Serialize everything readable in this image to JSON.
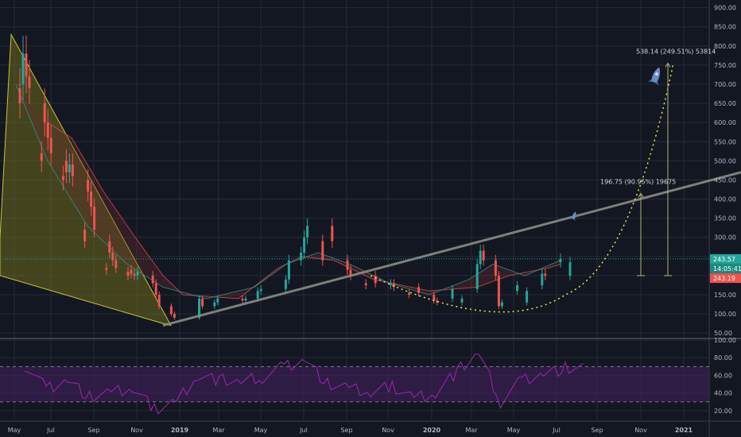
{
  "colors": {
    "background": "#131722",
    "grid": "#262b3a",
    "axis_text": "#b2b5be",
    "separator": "#3a3f4d",
    "candle_up": "#26a69a",
    "candle_down": "#ef5350",
    "cloud_green": "#1e5e3a",
    "cloud_red": "#6b2a2f",
    "wedge_fill": "#6b6a1c",
    "wedge_line": "#c9c23a",
    "trendline": "#8a8c84",
    "curve": "#e8e84a",
    "projection": "#b3b07a",
    "rsi_line": "#9c27b0",
    "rsi_band": "#3b2052",
    "last_price": "#26a69a",
    "countdown": "#1e8a80",
    "prev_price": "#ef5350",
    "price_line": "#26a69a"
  },
  "chart_data": [
    {
      "type": "candlestick",
      "x_ticks": [
        "May",
        "Jul",
        "Sep",
        "Nov",
        "2019",
        "Mar",
        "May",
        "Jul",
        "Sep",
        "Nov",
        "2020",
        "Mar",
        "May",
        "Jul",
        "Sep",
        "Nov",
        "2021"
      ],
      "y_ticks": [
        "900.00",
        "850.00",
        "800.00",
        "750.00",
        "700.00",
        "650.00",
        "600.00",
        "550.00",
        "500.00",
        "450.00",
        "400.00",
        "350.00",
        "300.00",
        "250.00",
        "200.00",
        "150.00",
        "100.00",
        "50.00"
      ],
      "ylim": [
        40,
        920
      ],
      "grid": true,
      "price_labels": {
        "last": "243.57",
        "countdown": "14:05:41",
        "prev": "243.19"
      },
      "annotations": [
        {
          "text": "538.14 (249.51%) 53814",
          "from": 200,
          "to": 755
        },
        {
          "text": "196.75 (90.95%) 19675",
          "from": 200,
          "to": 415
        }
      ],
      "trendline": {
        "start": [
          "2018-12",
          "70"
        ],
        "end": [
          "2021-03",
          "470"
        ]
      },
      "icons": [
        "rocket-icon",
        "rocket-small-icon"
      ],
      "series": [
        {
          "type": "candlestick",
          "points": [
            [
              "2018-05",
              700
            ],
            [
              "2018-05",
              780
            ],
            [
              "2018-05",
              720
            ],
            [
              "2018-05",
              690
            ],
            [
              "2018-05",
              650
            ],
            [
              "2018-06",
              600
            ],
            [
              "2018-06",
              560
            ],
            [
              "2018-06",
              520
            ],
            [
              "2018-06",
              500
            ],
            [
              "2018-07",
              470
            ],
            [
              "2018-07",
              490
            ],
            [
              "2018-07",
              460
            ],
            [
              "2018-07",
              450
            ],
            [
              "2018-08",
              420
            ],
            [
              "2018-08",
              380
            ],
            [
              "2018-08",
              320
            ],
            [
              "2018-08",
              290
            ],
            [
              "2018-09",
              260
            ],
            [
              "2018-09",
              240
            ],
            [
              "2018-09",
              220
            ],
            [
              "2018-09",
              215
            ],
            [
              "2018-10",
              205
            ],
            [
              "2018-10",
              200
            ],
            [
              "2018-10",
              210
            ],
            [
              "2018-10",
              200
            ],
            [
              "2018-11",
              180
            ],
            [
              "2018-11",
              150
            ],
            [
              "2018-11",
              120
            ],
            [
              "2018-12",
              100
            ],
            [
              "2018-12",
              90
            ],
            [
              "2019-01",
              140
            ],
            [
              "2019-01",
              120
            ],
            [
              "2019-02",
              130
            ],
            [
              "2019-02",
              140
            ],
            [
              "2019-03",
              135
            ],
            [
              "2019-03",
              140
            ],
            [
              "2019-04",
              160
            ],
            [
              "2019-04",
              165
            ],
            [
              "2019-05",
              190
            ],
            [
              "2019-05",
              240
            ],
            [
              "2019-06",
              260
            ],
            [
              "2019-06",
              300
            ],
            [
              "2019-06",
              330
            ],
            [
              "2019-07",
              290
            ],
            [
              "2019-07",
              240
            ],
            [
              "2019-08",
              215
            ],
            [
              "2019-08",
              200
            ],
            [
              "2019-09",
              180
            ],
            [
              "2019-09",
              175
            ],
            [
              "2019-10",
              180
            ],
            [
              "2019-10",
              170
            ],
            [
              "2019-11",
              155
            ],
            [
              "2019-11",
              150
            ],
            [
              "2019-12",
              135
            ],
            [
              "2019-12",
              130
            ],
            [
              "2020-01",
              140
            ],
            [
              "2020-01",
              165
            ],
            [
              "2020-02",
              230
            ],
            [
              "2020-02",
              265
            ],
            [
              "2020-02",
              240
            ],
            [
              "2020-03",
              200
            ],
            [
              "2020-03",
              120
            ],
            [
              "2020-03",
              130
            ],
            [
              "2020-04",
              160
            ],
            [
              "2020-04",
              175
            ],
            [
              "2020-05",
              205
            ],
            [
              "2020-05",
              200
            ],
            [
              "2020-06",
              235
            ],
            [
              "2020-06",
              243.57
            ]
          ]
        },
        {
          "type": "rsi",
          "ylim": [
            10,
            100
          ],
          "y_ticks": [
            "100.00",
            "80.00",
            "60.00",
            "40.00",
            "20.00"
          ],
          "band": [
            30,
            70
          ],
          "points": [
            [
              "2018-05",
              72
            ],
            [
              "2018-06",
              45
            ],
            [
              "2018-07",
              55
            ],
            [
              "2018-08",
              35
            ],
            [
              "2018-09",
              40
            ],
            [
              "2018-10",
              45
            ],
            [
              "2018-11",
              22
            ],
            [
              "2018-12",
              30
            ],
            [
              "2019-01",
              60
            ],
            [
              "2019-02",
              55
            ],
            [
              "2019-03",
              52
            ],
            [
              "2019-04",
              58
            ],
            [
              "2019-05",
              70
            ],
            [
              "2019-06",
              78
            ],
            [
              "2019-07",
              50
            ],
            [
              "2019-08",
              45
            ],
            [
              "2019-09",
              40
            ],
            [
              "2019-10",
              48
            ],
            [
              "2019-11",
              35
            ],
            [
              "2019-12",
              40
            ],
            [
              "2020-01",
              65
            ],
            [
              "2020-02",
              85
            ],
            [
              "2020-03",
              30
            ],
            [
              "2020-04",
              55
            ],
            [
              "2020-05",
              62
            ],
            [
              "2020-06",
              68
            ]
          ]
        }
      ]
    }
  ]
}
